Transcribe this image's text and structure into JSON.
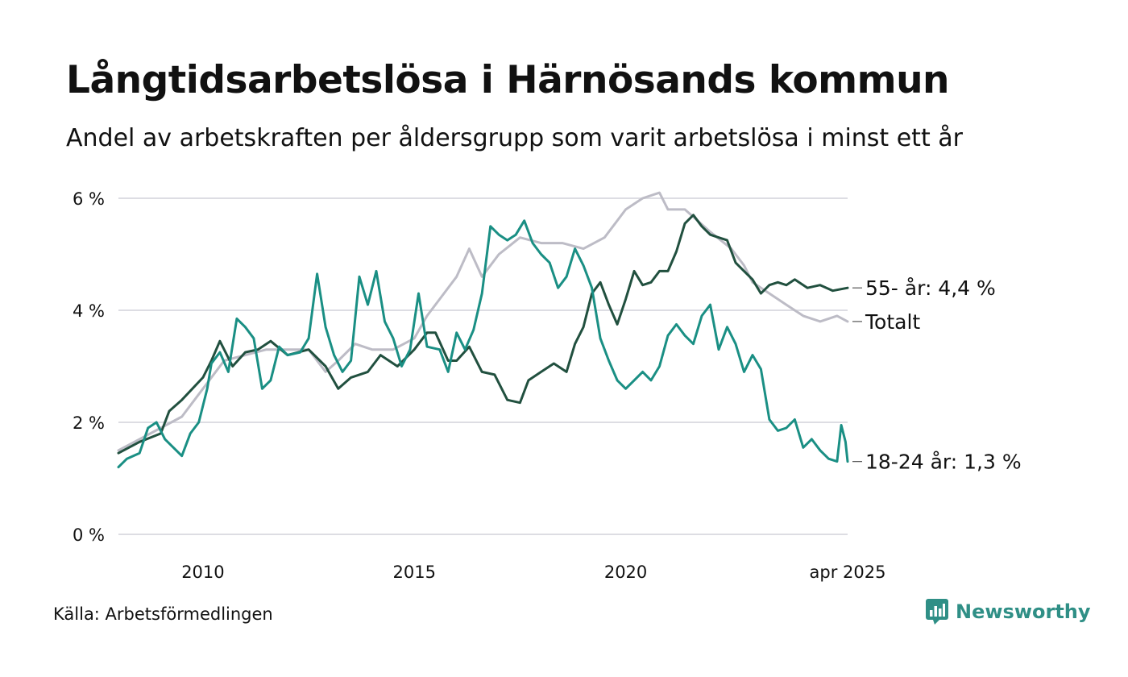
{
  "header": {
    "title": "Långtidsarbetslösa i Härnösands kommun",
    "subtitle": "Andel av arbetskraften per åldersgrupp som varit arbetslösa i minst ett år"
  },
  "footer": {
    "source": "Källa: Arbetsförmedlingen",
    "brand": "Newsworthy",
    "brand_icon": "bar-chart-logo-icon",
    "brand_color": "#2f8f86"
  },
  "chart_data": {
    "type": "line",
    "title": "",
    "xlabel": "",
    "ylabel": "",
    "xlim": [
      2008.0,
      2025.25
    ],
    "ylim": [
      0,
      6
    ],
    "grid": true,
    "y_ticks": [
      {
        "value": 0,
        "label": "0 %"
      },
      {
        "value": 2,
        "label": "2 %"
      },
      {
        "value": 4,
        "label": "4 %"
      },
      {
        "value": 6,
        "label": "6 %"
      }
    ],
    "x_ticks": [
      {
        "value": 2010,
        "label": "2010"
      },
      {
        "value": 2015,
        "label": "2015"
      },
      {
        "value": 2020,
        "label": "2020"
      },
      {
        "value": 2025.25,
        "label": "apr 2025"
      }
    ],
    "series": [
      {
        "key": "totalt",
        "label": "Totalt",
        "color": "#bdbcc6",
        "points": [
          [
            2008.0,
            1.5
          ],
          [
            2008.5,
            1.7
          ],
          [
            2009.0,
            1.9
          ],
          [
            2009.5,
            2.1
          ],
          [
            2010.0,
            2.6
          ],
          [
            2010.5,
            3.1
          ],
          [
            2011.0,
            3.2
          ],
          [
            2011.5,
            3.3
          ],
          [
            2012.0,
            3.3
          ],
          [
            2012.5,
            3.3
          ],
          [
            2012.9,
            2.9
          ],
          [
            2013.2,
            3.1
          ],
          [
            2013.6,
            3.4
          ],
          [
            2014.0,
            3.3
          ],
          [
            2014.5,
            3.3
          ],
          [
            2015.0,
            3.5
          ],
          [
            2015.3,
            3.9
          ],
          [
            2015.6,
            4.2
          ],
          [
            2016.0,
            4.6
          ],
          [
            2016.3,
            5.1
          ],
          [
            2016.6,
            4.6
          ],
          [
            2017.0,
            5.0
          ],
          [
            2017.5,
            5.3
          ],
          [
            2018.0,
            5.2
          ],
          [
            2018.5,
            5.2
          ],
          [
            2019.0,
            5.1
          ],
          [
            2019.5,
            5.3
          ],
          [
            2020.0,
            5.8
          ],
          [
            2020.4,
            6.0
          ],
          [
            2020.8,
            6.1
          ],
          [
            2021.0,
            5.8
          ],
          [
            2021.4,
            5.8
          ],
          [
            2021.7,
            5.6
          ],
          [
            2022.0,
            5.4
          ],
          [
            2022.5,
            5.1
          ],
          [
            2022.8,
            4.8
          ],
          [
            2023.0,
            4.5
          ],
          [
            2023.4,
            4.3
          ],
          [
            2023.8,
            4.1
          ],
          [
            2024.2,
            3.9
          ],
          [
            2024.6,
            3.8
          ],
          [
            2025.0,
            3.9
          ],
          [
            2025.25,
            3.8
          ]
        ]
      },
      {
        "key": "55",
        "label": "55- år: 4,4 %",
        "color": "#21503f",
        "points": [
          [
            2008.0,
            1.45
          ],
          [
            2008.5,
            1.65
          ],
          [
            2009.0,
            1.8
          ],
          [
            2009.2,
            2.2
          ],
          [
            2009.5,
            2.4
          ],
          [
            2010.0,
            2.8
          ],
          [
            2010.2,
            3.1
          ],
          [
            2010.4,
            3.45
          ],
          [
            2010.7,
            3.0
          ],
          [
            2011.0,
            3.25
          ],
          [
            2011.3,
            3.3
          ],
          [
            2011.6,
            3.45
          ],
          [
            2012.0,
            3.2
          ],
          [
            2012.5,
            3.3
          ],
          [
            2012.9,
            3.0
          ],
          [
            2013.2,
            2.6
          ],
          [
            2013.5,
            2.8
          ],
          [
            2013.9,
            2.9
          ],
          [
            2014.2,
            3.2
          ],
          [
            2014.6,
            3.0
          ],
          [
            2015.0,
            3.3
          ],
          [
            2015.3,
            3.6
          ],
          [
            2015.5,
            3.6
          ],
          [
            2015.8,
            3.1
          ],
          [
            2016.0,
            3.1
          ],
          [
            2016.3,
            3.35
          ],
          [
            2016.6,
            2.9
          ],
          [
            2016.9,
            2.85
          ],
          [
            2017.2,
            2.4
          ],
          [
            2017.5,
            2.35
          ],
          [
            2017.7,
            2.75
          ],
          [
            2018.0,
            2.9
          ],
          [
            2018.3,
            3.05
          ],
          [
            2018.6,
            2.9
          ],
          [
            2018.8,
            3.4
          ],
          [
            2019.0,
            3.7
          ],
          [
            2019.2,
            4.3
          ],
          [
            2019.4,
            4.5
          ],
          [
            2019.6,
            4.1
          ],
          [
            2019.8,
            3.75
          ],
          [
            2020.0,
            4.2
          ],
          [
            2020.2,
            4.7
          ],
          [
            2020.4,
            4.45
          ],
          [
            2020.6,
            4.5
          ],
          [
            2020.8,
            4.7
          ],
          [
            2021.0,
            4.7
          ],
          [
            2021.2,
            5.05
          ],
          [
            2021.4,
            5.55
          ],
          [
            2021.6,
            5.7
          ],
          [
            2021.8,
            5.5
          ],
          [
            2022.0,
            5.35
          ],
          [
            2022.4,
            5.25
          ],
          [
            2022.6,
            4.85
          ],
          [
            2022.8,
            4.7
          ],
          [
            2023.0,
            4.55
          ],
          [
            2023.2,
            4.3
          ],
          [
            2023.4,
            4.45
          ],
          [
            2023.6,
            4.5
          ],
          [
            2023.8,
            4.45
          ],
          [
            2024.0,
            4.55
          ],
          [
            2024.3,
            4.4
          ],
          [
            2024.6,
            4.45
          ],
          [
            2024.9,
            4.35
          ],
          [
            2025.25,
            4.4
          ]
        ]
      },
      {
        "key": "1824",
        "label": "18-24 år: 1,3 %",
        "color": "#1a8f84",
        "points": [
          [
            2008.0,
            1.2
          ],
          [
            2008.2,
            1.35
          ],
          [
            2008.5,
            1.45
          ],
          [
            2008.7,
            1.9
          ],
          [
            2008.9,
            2.0
          ],
          [
            2009.1,
            1.7
          ],
          [
            2009.3,
            1.55
          ],
          [
            2009.5,
            1.4
          ],
          [
            2009.7,
            1.8
          ],
          [
            2009.9,
            2.0
          ],
          [
            2010.1,
            2.6
          ],
          [
            2010.2,
            3.05
          ],
          [
            2010.4,
            3.25
          ],
          [
            2010.6,
            2.9
          ],
          [
            2010.8,
            3.85
          ],
          [
            2011.0,
            3.7
          ],
          [
            2011.2,
            3.5
          ],
          [
            2011.4,
            2.6
          ],
          [
            2011.6,
            2.75
          ],
          [
            2011.8,
            3.35
          ],
          [
            2012.0,
            3.2
          ],
          [
            2012.3,
            3.25
          ],
          [
            2012.5,
            3.5
          ],
          [
            2012.7,
            4.65
          ],
          [
            2012.9,
            3.7
          ],
          [
            2013.1,
            3.2
          ],
          [
            2013.3,
            2.9
          ],
          [
            2013.5,
            3.1
          ],
          [
            2013.7,
            4.6
          ],
          [
            2013.9,
            4.1
          ],
          [
            2014.1,
            4.7
          ],
          [
            2014.3,
            3.8
          ],
          [
            2014.5,
            3.5
          ],
          [
            2014.7,
            3.0
          ],
          [
            2014.9,
            3.3
          ],
          [
            2015.1,
            4.3
          ],
          [
            2015.3,
            3.35
          ],
          [
            2015.6,
            3.3
          ],
          [
            2015.8,
            2.9
          ],
          [
            2016.0,
            3.6
          ],
          [
            2016.2,
            3.3
          ],
          [
            2016.4,
            3.65
          ],
          [
            2016.6,
            4.3
          ],
          [
            2016.8,
            5.5
          ],
          [
            2017.0,
            5.35
          ],
          [
            2017.2,
            5.25
          ],
          [
            2017.4,
            5.35
          ],
          [
            2017.6,
            5.6
          ],
          [
            2017.8,
            5.2
          ],
          [
            2018.0,
            5.0
          ],
          [
            2018.2,
            4.85
          ],
          [
            2018.4,
            4.4
          ],
          [
            2018.6,
            4.6
          ],
          [
            2018.8,
            5.1
          ],
          [
            2019.0,
            4.8
          ],
          [
            2019.2,
            4.4
          ],
          [
            2019.4,
            3.5
          ],
          [
            2019.6,
            3.1
          ],
          [
            2019.8,
            2.75
          ],
          [
            2020.0,
            2.6
          ],
          [
            2020.2,
            2.75
          ],
          [
            2020.4,
            2.9
          ],
          [
            2020.6,
            2.75
          ],
          [
            2020.8,
            3.0
          ],
          [
            2021.0,
            3.55
          ],
          [
            2021.2,
            3.75
          ],
          [
            2021.4,
            3.55
          ],
          [
            2021.6,
            3.4
          ],
          [
            2021.8,
            3.9
          ],
          [
            2022.0,
            4.1
          ],
          [
            2022.2,
            3.3
          ],
          [
            2022.4,
            3.7
          ],
          [
            2022.6,
            3.4
          ],
          [
            2022.8,
            2.9
          ],
          [
            2023.0,
            3.2
          ],
          [
            2023.2,
            2.95
          ],
          [
            2023.4,
            2.05
          ],
          [
            2023.6,
            1.85
          ],
          [
            2023.8,
            1.9
          ],
          [
            2024.0,
            2.05
          ],
          [
            2024.2,
            1.55
          ],
          [
            2024.4,
            1.7
          ],
          [
            2024.6,
            1.5
          ],
          [
            2024.8,
            1.35
          ],
          [
            2025.0,
            1.3
          ],
          [
            2025.1,
            1.95
          ],
          [
            2025.2,
            1.65
          ],
          [
            2025.25,
            1.3
          ]
        ]
      }
    ],
    "end_labels": [
      {
        "series": "55",
        "text": "55- år: 4,4 %",
        "value": 4.4
      },
      {
        "series": "totalt",
        "text": "Totalt",
        "value": 3.8
      },
      {
        "series": "1824",
        "text": "18-24 år: 1,3 %",
        "value": 1.3
      }
    ],
    "grid_color": "#dddde3"
  }
}
